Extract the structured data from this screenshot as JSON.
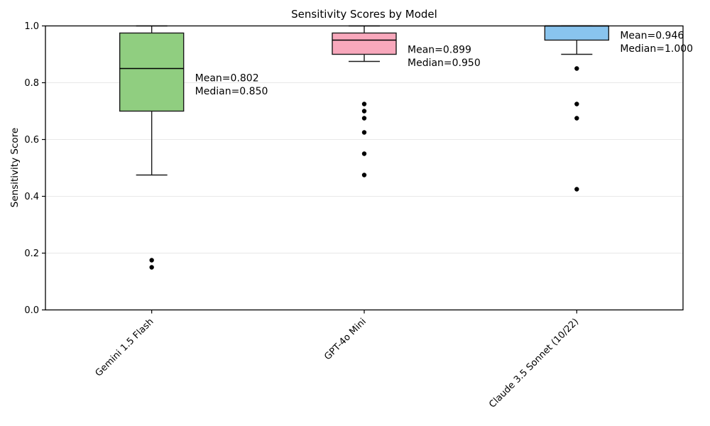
{
  "figure": {
    "background": "#ffffff",
    "plot_background": "#ffffff",
    "grid_color": "#e8e8e8",
    "spine_color": "#000000",
    "box_edge_color": "#1a1a1a",
    "median_color": "#000000",
    "outlier_color": "#000000",
    "text_color": "#000000"
  },
  "chart_data": {
    "type": "boxplot",
    "title": "Sensitivity Scores by Model",
    "xlabel": "",
    "ylabel": "Sensitivity Score",
    "ylim": [
      0.0,
      1.0
    ],
    "yticks": [
      "0.0",
      "0.2",
      "0.4",
      "0.6",
      "0.8",
      "1.0"
    ],
    "ytick_values": [
      0.0,
      0.2,
      0.4,
      0.6,
      0.8,
      1.0
    ],
    "grid": "horizontal",
    "legend": "none",
    "x_label_rotation_deg": 45,
    "categories": [
      "Gemini 1.5 Flash",
      "GPT-4o Mini",
      "Claude 3.5 Sonnet (10/22)"
    ],
    "series": [
      {
        "label": "Gemini 1.5 Flash",
        "box_color": "#90ce80",
        "whisker_low": 0.475,
        "q1": 0.7,
        "median": 0.85,
        "q3": 0.975,
        "whisker_high": 1.0,
        "mean": 0.802,
        "outliers": [
          0.175,
          0.15
        ],
        "annotation_lines": [
          "Mean=0.802",
          "Median=0.850"
        ]
      },
      {
        "label": "GPT-4o Mini",
        "box_color": "#f8a8bc",
        "whisker_low": 0.875,
        "q1": 0.9,
        "median": 0.95,
        "q3": 0.975,
        "whisker_high": 1.0,
        "mean": 0.899,
        "outliers": [
          0.725,
          0.7,
          0.675,
          0.625,
          0.55,
          0.475
        ],
        "annotation_lines": [
          "Mean=0.899",
          "Median=0.950"
        ]
      },
      {
        "label": "Claude 3.5 Sonnet (10/22)",
        "box_color": "#89c4ee",
        "whisker_low": 0.9,
        "q1": 0.95,
        "median": 1.0,
        "q3": 1.0,
        "whisker_high": 1.0,
        "mean": 0.946,
        "outliers": [
          0.85,
          0.725,
          0.675,
          0.425
        ],
        "annotation_lines": [
          "Mean=0.946",
          "Median=1.000"
        ]
      }
    ]
  }
}
